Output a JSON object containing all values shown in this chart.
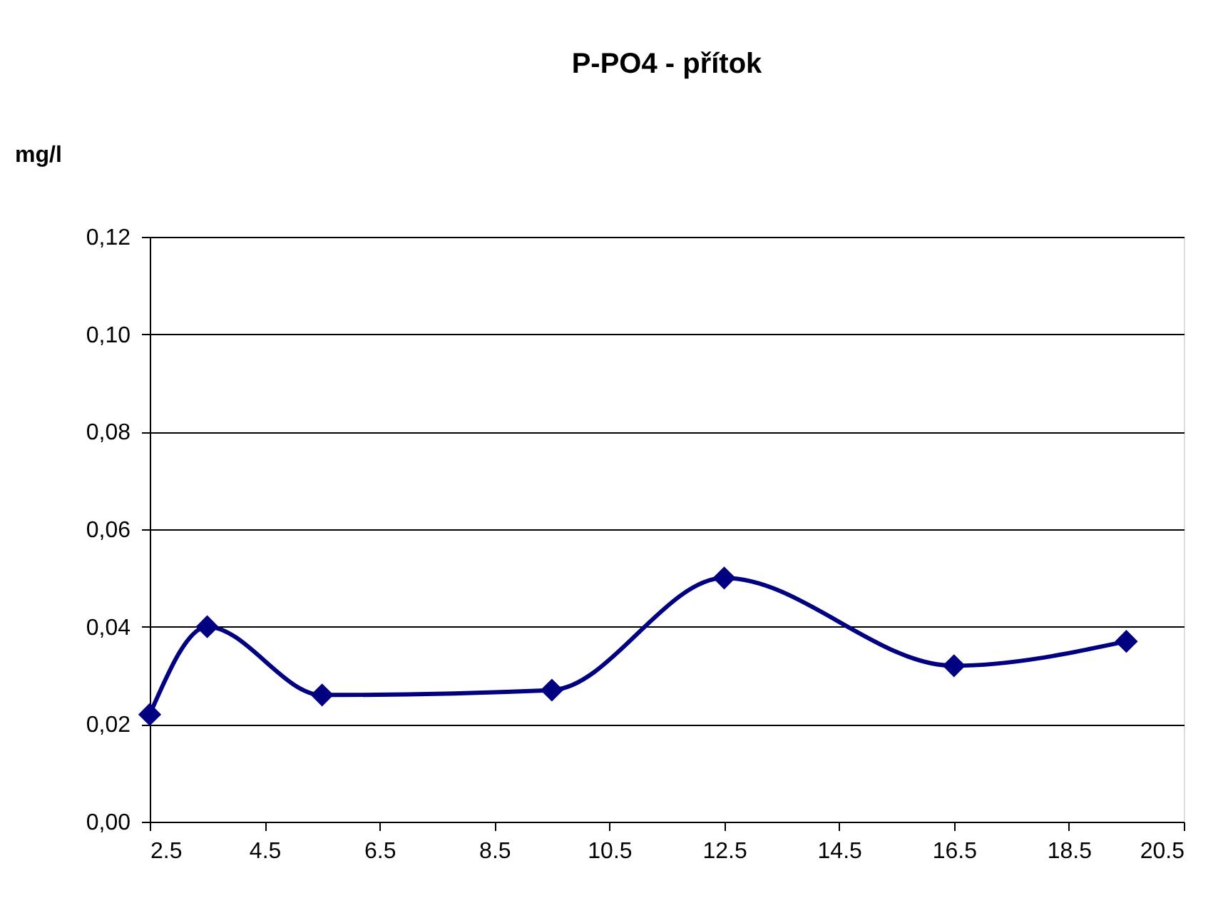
{
  "chart_data": {
    "type": "line",
    "title": "P-PO4 - přítok",
    "ylabel": "mg/l",
    "x": [
      2.5,
      3.5,
      5.5,
      9.5,
      12.5,
      16.5,
      19.5
    ],
    "series": [
      {
        "color": "#000080",
        "values": [
          0.022,
          0.04,
          0.026,
          0.027,
          0.05,
          0.032,
          0.037
        ]
      }
    ],
    "xlim": [
      2.5,
      20.5
    ],
    "xticks": [
      2.5,
      4.5,
      6.5,
      8.5,
      10.5,
      12.5,
      14.5,
      16.5,
      18.5,
      20.5
    ],
    "ylim": [
      0,
      0.12
    ],
    "yticks": [
      {
        "value": 0,
        "label": "0,00"
      },
      {
        "value": 0.02,
        "label": "0,02"
      },
      {
        "value": 0.04,
        "label": "0,04"
      },
      {
        "value": 0.06,
        "label": "0,06"
      },
      {
        "value": 0.08,
        "label": "0,08"
      },
      {
        "value": 0.1,
        "label": "0,10"
      },
      {
        "value": 0.12,
        "label": "0,12"
      }
    ],
    "grid": "y",
    "marker": "diamond",
    "line_style": "solid"
  }
}
